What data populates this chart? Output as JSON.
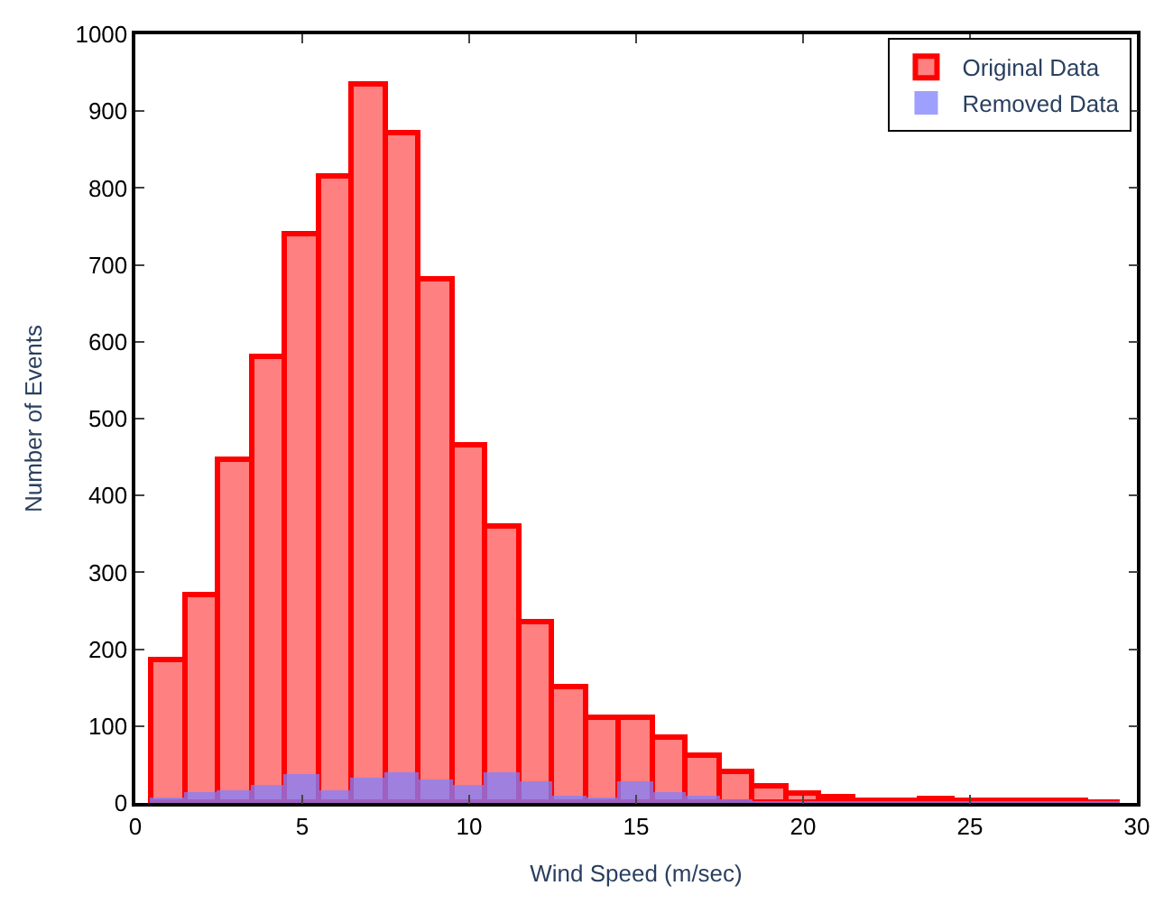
{
  "chart_data": {
    "type": "histogram",
    "xlabel": "Wind Speed (m/sec)",
    "ylabel": "Number of Events",
    "bins": [
      0.5,
      1.5,
      2.5,
      3.5,
      4.5,
      5.5,
      6.5,
      7.5,
      8.5,
      9.5,
      10.5,
      11.5,
      12.5,
      13.5,
      14.5,
      15.5,
      16.5,
      17.5,
      18.5,
      19.5,
      20.5,
      21.5,
      22.5,
      23.5,
      24.5,
      25.5,
      26.5,
      27.5,
      28.5,
      29.5
    ],
    "series": [
      {
        "name": "Original Data",
        "color": "#ff8080",
        "values": [
          185,
          270,
          445,
          580,
          740,
          815,
          935,
          870,
          680,
          465,
          360,
          235,
          150,
          110,
          110,
          85,
          60,
          40,
          20,
          12,
          8,
          3,
          3,
          4,
          2,
          2,
          2,
          2,
          1
        ]
      },
      {
        "name": "Removed Data",
        "color": "#8080ff",
        "values": [
          5,
          12,
          15,
          22,
          35,
          15,
          30,
          37,
          28,
          20,
          37,
          25,
          8,
          5,
          25,
          12,
          8,
          3,
          1,
          1,
          0,
          0,
          0,
          0,
          0,
          0,
          0,
          0,
          0
        ]
      }
    ],
    "xlim": [
      0,
      30
    ],
    "xticks": [
      0,
      5,
      10,
      15,
      20,
      25,
      30
    ],
    "ylim": [
      0,
      1000
    ],
    "yticks": [
      0,
      100,
      200,
      300,
      400,
      500,
      600,
      700,
      800,
      900,
      1000
    ],
    "legend": "top right"
  }
}
